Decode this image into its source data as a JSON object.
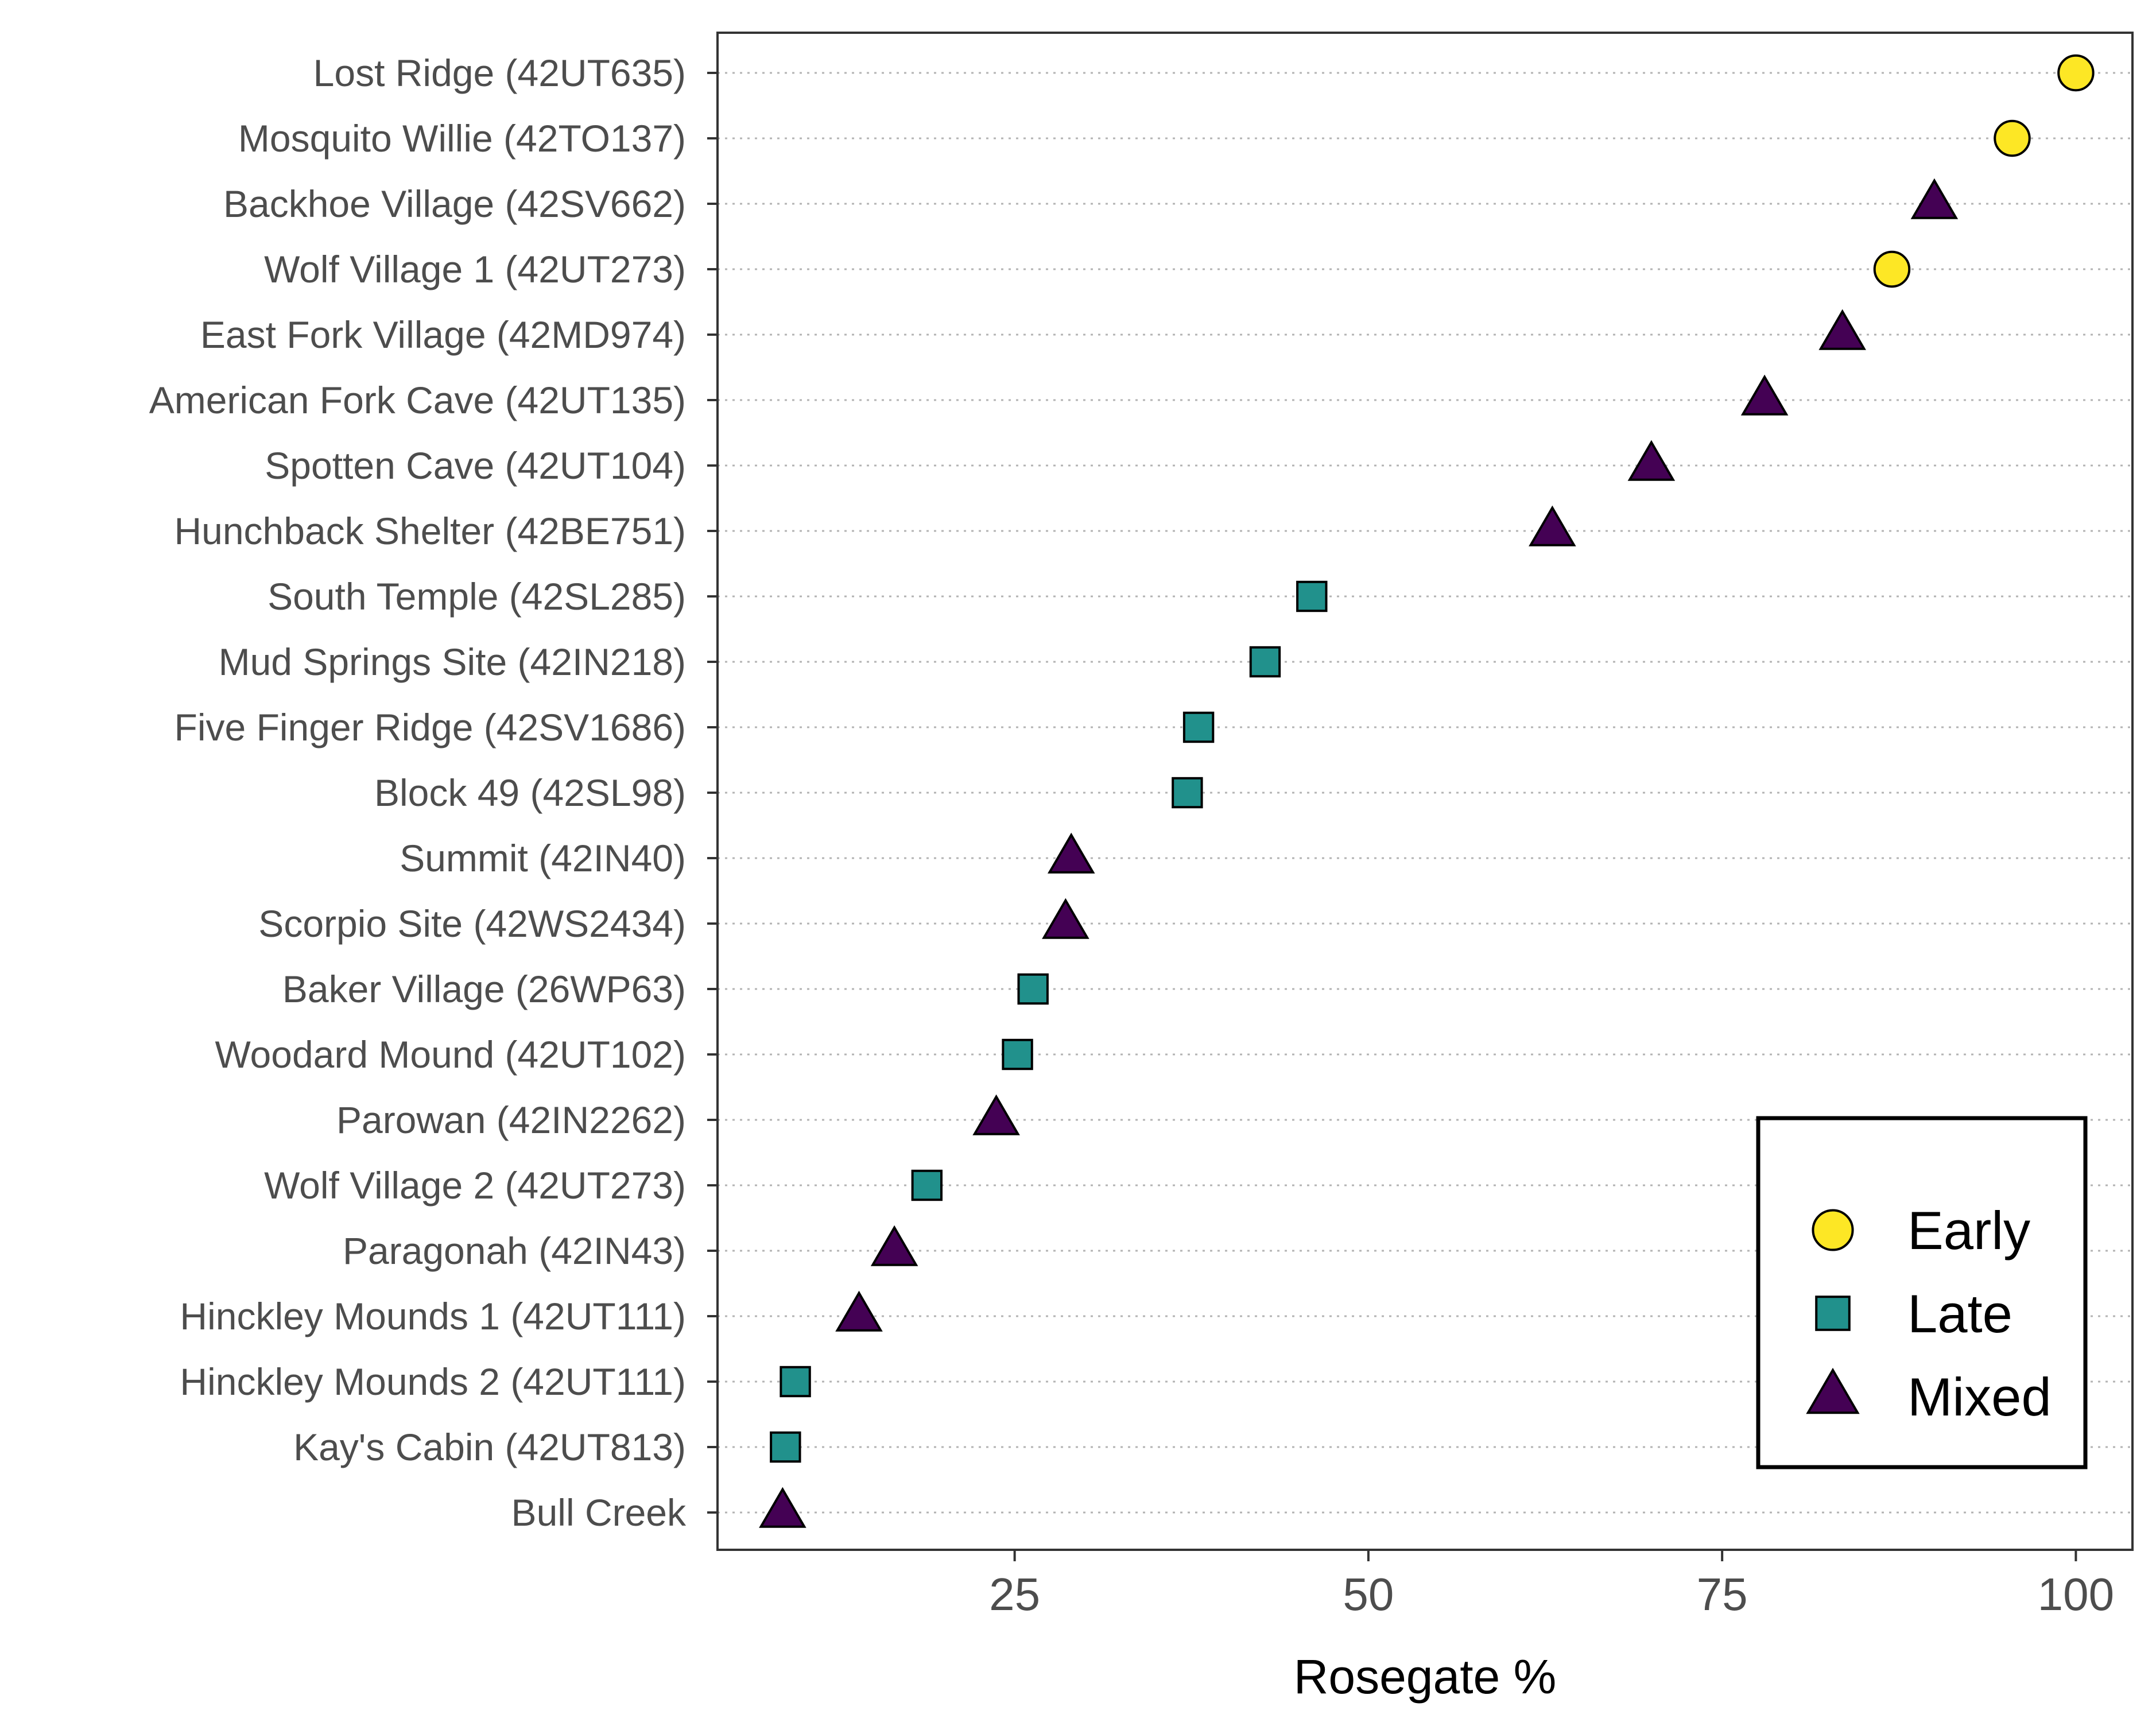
{
  "chart_data": {
    "type": "scatter",
    "xlabel": "Rosegate %",
    "ylabel": "",
    "xlim": [
      4,
      104
    ],
    "x_ticks": [
      25,
      50,
      75,
      100
    ],
    "grid": "horizontal dotted",
    "legend_position": "bottom-right",
    "groups": [
      {
        "name": "Early",
        "shape": "circle",
        "color": "#fde725"
      },
      {
        "name": "Late",
        "shape": "square",
        "color": "#21918c"
      },
      {
        "name": "Mixed",
        "shape": "triangle",
        "color": "#440154"
      }
    ],
    "points": [
      {
        "site": "Lost Ridge (42UT635)",
        "value": 100,
        "group": "Early"
      },
      {
        "site": "Mosquito Willie (42TO137)",
        "value": 95.5,
        "group": "Early"
      },
      {
        "site": "Backhoe Village (42SV662)",
        "value": 90,
        "group": "Mixed"
      },
      {
        "site": "Wolf Village 1 (42UT273)",
        "value": 87,
        "group": "Early"
      },
      {
        "site": "East Fork Village (42MD974)",
        "value": 83.5,
        "group": "Mixed"
      },
      {
        "site": "American Fork Cave (42UT135)",
        "value": 78,
        "group": "Mixed"
      },
      {
        "site": "Spotten Cave (42UT104)",
        "value": 70,
        "group": "Mixed"
      },
      {
        "site": "Hunchback Shelter (42BE751)",
        "value": 63,
        "group": "Mixed"
      },
      {
        "site": "South Temple (42SL285)",
        "value": 46,
        "group": "Late"
      },
      {
        "site": "Mud Springs Site (42IN218)",
        "value": 42.7,
        "group": "Late"
      },
      {
        "site": "Five Finger Ridge (42SV1686)",
        "value": 38,
        "group": "Late"
      },
      {
        "site": "Block 49 (42SL98)",
        "value": 37.2,
        "group": "Late"
      },
      {
        "site": "Summit (42IN40)",
        "value": 29,
        "group": "Mixed"
      },
      {
        "site": "Scorpio Site (42WS2434)",
        "value": 28.6,
        "group": "Mixed"
      },
      {
        "site": "Baker Village (26WP63)",
        "value": 26.3,
        "group": "Late"
      },
      {
        "site": "Woodard Mound (42UT102)",
        "value": 25.2,
        "group": "Late"
      },
      {
        "site": "Parowan (42IN2262)",
        "value": 23.7,
        "group": "Mixed"
      },
      {
        "site": "Wolf Village 2 (42UT273)",
        "value": 18.8,
        "group": "Late"
      },
      {
        "site": "Paragonah (42IN43)",
        "value": 16.5,
        "group": "Mixed"
      },
      {
        "site": "Hinckley Mounds 1 (42UT111)",
        "value": 14,
        "group": "Mixed"
      },
      {
        "site": "Hinckley Mounds 2 (42UT111)",
        "value": 9.5,
        "group": "Late"
      },
      {
        "site": "Kay's Cabin (42UT813)",
        "value": 8.8,
        "group": "Late"
      },
      {
        "site": "Bull Creek",
        "value": 8.6,
        "group": "Mixed"
      }
    ]
  }
}
